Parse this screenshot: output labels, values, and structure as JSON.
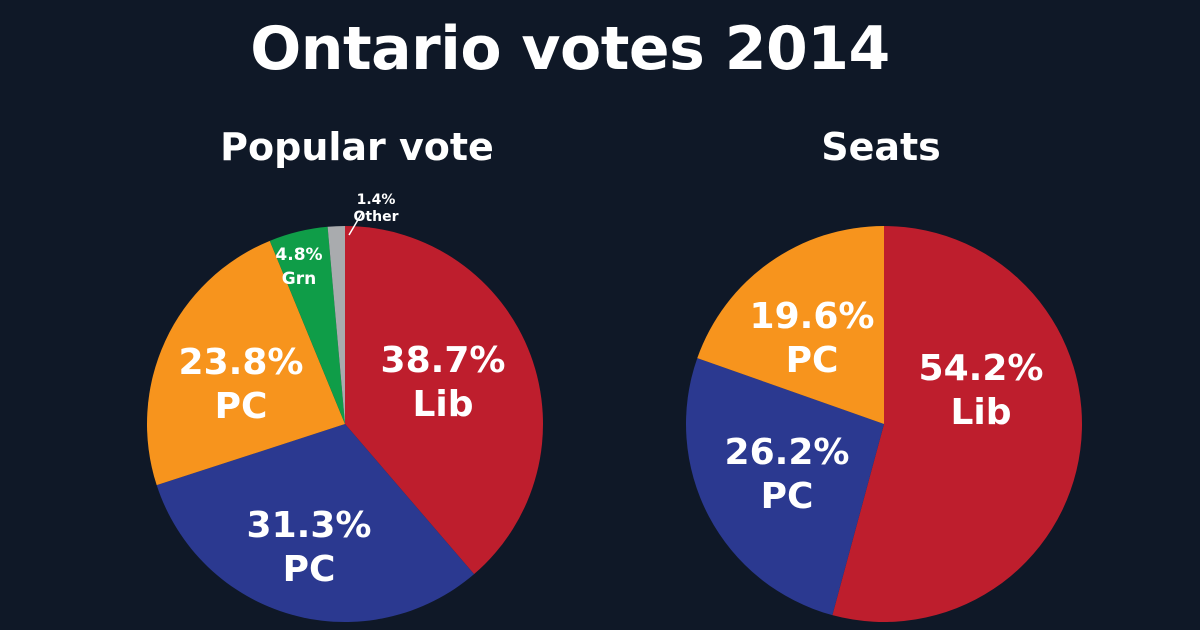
{
  "title": "Ontario votes 2014",
  "colors": {
    "Lib": "#be1e2d",
    "PC": "#f7941d",
    "PC_navy": "#2b3990",
    "Grn": "#0f9d48",
    "Other": "#a9abae"
  },
  "chart_data": [
    {
      "type": "pie",
      "title": "Popular vote",
      "slices": [
        {
          "label": "Lib",
          "value": 38.7,
          "value_label": "38.7%",
          "color": "#be1e2d"
        },
        {
          "label": "PC",
          "value": 31.3,
          "value_label": "31.3%",
          "color": "#2b3990"
        },
        {
          "label": "PC",
          "value": 23.8,
          "value_label": "23.8%",
          "color": "#f7941d"
        },
        {
          "label": "Grn",
          "value": 4.8,
          "value_label": "4.8%",
          "color": "#0f9d48"
        },
        {
          "label": "Other",
          "value": 1.4,
          "value_label": "1.4%",
          "color": "#a9abae"
        }
      ]
    },
    {
      "type": "pie",
      "title": "Seats",
      "slices": [
        {
          "label": "Lib",
          "value": 54.2,
          "value_label": "54.2%",
          "color": "#be1e2d"
        },
        {
          "label": "PC",
          "value": 26.2,
          "value_label": "26.2%",
          "color": "#2b3990"
        },
        {
          "label": "PC",
          "value": 19.6,
          "value_label": "19.6%",
          "color": "#f7941d"
        }
      ]
    }
  ]
}
